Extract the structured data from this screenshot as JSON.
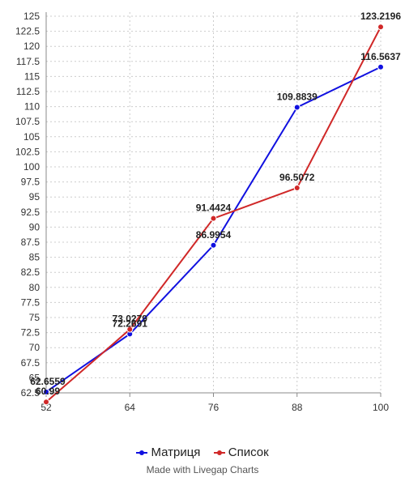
{
  "chart_data": {
    "type": "line",
    "x": [
      52,
      64,
      76,
      88,
      100
    ],
    "xlim": [
      52,
      100
    ],
    "ylim": [
      62.5,
      125
    ],
    "y_ticks": [
      "62.5",
      "65",
      "67.5",
      "70",
      "72.5",
      "75",
      "77.5",
      "80",
      "82.5",
      "85",
      "87.5",
      "90",
      "92.5",
      "95",
      "97.5",
      "100",
      "102.5",
      "105",
      "107.5",
      "110",
      "112.5",
      "115",
      "117.5",
      "120",
      "122.5",
      "125"
    ],
    "x_ticks": [
      "52",
      "64",
      "76",
      "88",
      "100"
    ],
    "grid": true,
    "legend_position": "bottom",
    "series": [
      {
        "name": "Матриця",
        "color": "#1010e0",
        "values": [
          62.6559,
          72.2691,
          86.9954,
          109.8839,
          116.5637
        ],
        "labels": [
          "62.6559",
          "72.2691",
          "86.9954",
          "109.8839",
          "116.5637"
        ]
      },
      {
        "name": "Список",
        "color": "#d02828",
        "values": [
          60.99,
          73.0279,
          91.4424,
          96.5072,
          123.2196
        ],
        "labels": [
          "60.99",
          "73.0279",
          "91.4424",
          "96.5072",
          "123.2196"
        ]
      }
    ]
  },
  "credit": "Made with Livegap Charts"
}
